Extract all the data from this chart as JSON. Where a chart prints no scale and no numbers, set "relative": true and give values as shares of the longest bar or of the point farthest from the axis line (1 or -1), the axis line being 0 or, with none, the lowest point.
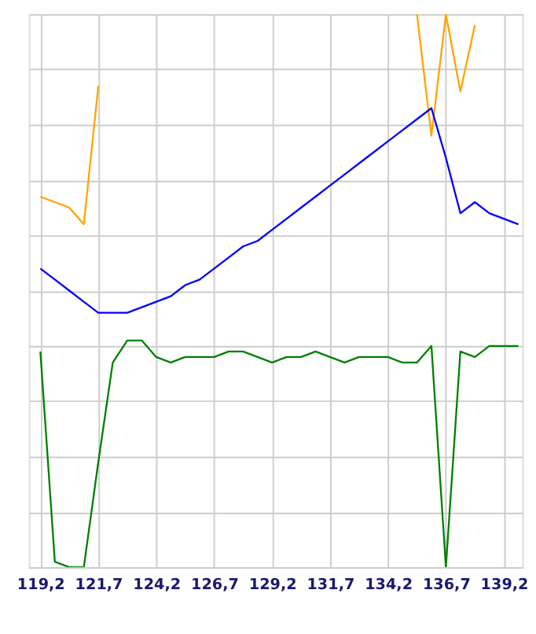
{
  "chart_data": {
    "type": "line",
    "relative": true,
    "grid": true,
    "tick_labels": "x",
    "x": [
      119.2,
      119.825,
      120.45,
      121.075,
      121.7,
      122.325,
      122.95,
      123.575,
      124.2,
      124.825,
      125.45,
      126.075,
      126.7,
      127.325,
      127.95,
      128.575,
      129.2,
      129.825,
      130.45,
      131.075,
      131.7,
      132.325,
      132.95,
      133.575,
      134.2,
      134.825,
      135.45,
      136.075,
      136.7,
      137.325,
      137.95,
      138.575,
      139.2,
      139.825
    ],
    "xlim": [
      118.7,
      140.0
    ],
    "xticks": [
      {
        "value": 119.2,
        "label": "119,2"
      },
      {
        "value": 121.7,
        "label": "121,7"
      },
      {
        "value": 124.2,
        "label": "124,2"
      },
      {
        "value": 126.7,
        "label": "126,7"
      },
      {
        "value": 129.2,
        "label": "129,2"
      },
      {
        "value": 131.7,
        "label": "131,7"
      },
      {
        "value": 134.2,
        "label": "134,2"
      },
      {
        "value": 136.7,
        "label": "136,7"
      },
      {
        "value": 139.2,
        "label": "139,2"
      }
    ],
    "series": [
      {
        "color": "#ffa500",
        "values": [
          0.67,
          0.66,
          0.65,
          0.62,
          0.87,
          null,
          null,
          null,
          null,
          null,
          null,
          null,
          null,
          null,
          null,
          null,
          null,
          null,
          null,
          null,
          null,
          null,
          null,
          null,
          null,
          null,
          1.0,
          0.78,
          1.0,
          0.86,
          0.98,
          null,
          null,
          null
        ]
      },
      {
        "color": "#0000ff",
        "values": [
          0.54,
          0.52,
          0.5,
          0.48,
          0.46,
          0.46,
          0.46,
          0.47,
          0.48,
          0.49,
          0.51,
          0.52,
          0.54,
          0.56,
          0.58,
          0.59,
          0.61,
          0.63,
          0.65,
          0.67,
          0.69,
          0.71,
          0.73,
          0.75,
          0.77,
          0.79,
          0.81,
          0.83,
          0.74,
          0.64,
          0.66,
          0.64,
          0.63,
          0.62
        ]
      },
      {
        "color": "#008000",
        "values": [
          0.39,
          0.01,
          0.0,
          0.0,
          0.19,
          0.37,
          0.41,
          0.41,
          0.38,
          0.37,
          0.38,
          0.38,
          0.38,
          0.39,
          0.39,
          0.38,
          0.37,
          0.38,
          0.38,
          0.39,
          0.38,
          0.37,
          0.38,
          0.38,
          0.38,
          0.37,
          0.37,
          0.4,
          0.0,
          0.39,
          0.38,
          0.4,
          0.4,
          0.4
        ]
      }
    ]
  }
}
